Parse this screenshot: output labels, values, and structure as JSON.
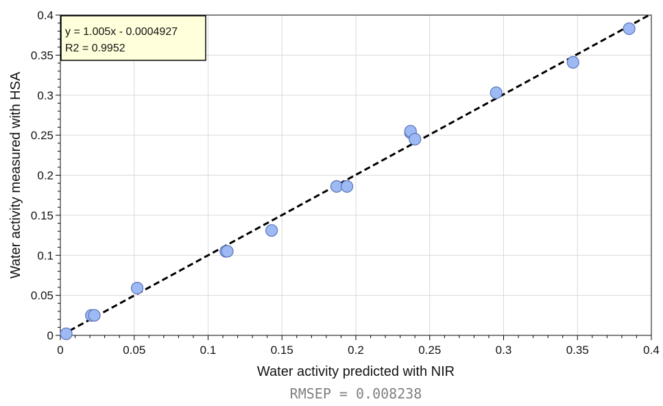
{
  "chart_data": {
    "type": "scatter",
    "xlabel": "Water activity predicted with NIR",
    "ylabel": "Water activity measured with HSA",
    "xlim": [
      0,
      0.4
    ],
    "ylim": [
      0,
      0.4
    ],
    "x_ticks": [
      "0",
      "0.05",
      "0.1",
      "0.15",
      "0.2",
      "0.25",
      "0.3",
      "0.35",
      "0.4"
    ],
    "y_ticks": [
      "0",
      "0.05",
      "0.1",
      "0.15",
      "0.2",
      "0.25",
      "0.3",
      "0.35",
      "0.4"
    ],
    "grid": true,
    "points": [
      {
        "x": 0.004,
        "y": 0.002
      },
      {
        "x": 0.021,
        "y": 0.025
      },
      {
        "x": 0.023,
        "y": 0.025
      },
      {
        "x": 0.052,
        "y": 0.059
      },
      {
        "x": 0.112,
        "y": 0.105
      },
      {
        "x": 0.113,
        "y": 0.105
      },
      {
        "x": 0.143,
        "y": 0.131
      },
      {
        "x": 0.187,
        "y": 0.186
      },
      {
        "x": 0.194,
        "y": 0.186
      },
      {
        "x": 0.237,
        "y": 0.253
      },
      {
        "x": 0.237,
        "y": 0.255
      },
      {
        "x": 0.24,
        "y": 0.245
      },
      {
        "x": 0.295,
        "y": 0.303
      },
      {
        "x": 0.347,
        "y": 0.341
      },
      {
        "x": 0.385,
        "y": 0.383
      }
    ],
    "fit_line": {
      "slope": 1.005,
      "intercept": -0.0004927,
      "style": "dashed",
      "color": "#000000"
    },
    "annotations": {
      "equation": "y = 1.005x - 0.0004927",
      "r2": "R2 = 0.9952",
      "rmsep": "RMSEP = 0.008238"
    },
    "colors": {
      "marker_fill": "#9dbaf5",
      "marker_stroke": "#5a72b8",
      "grid": "#d9d9d9",
      "annotation_bg": "#ffffdc"
    }
  }
}
